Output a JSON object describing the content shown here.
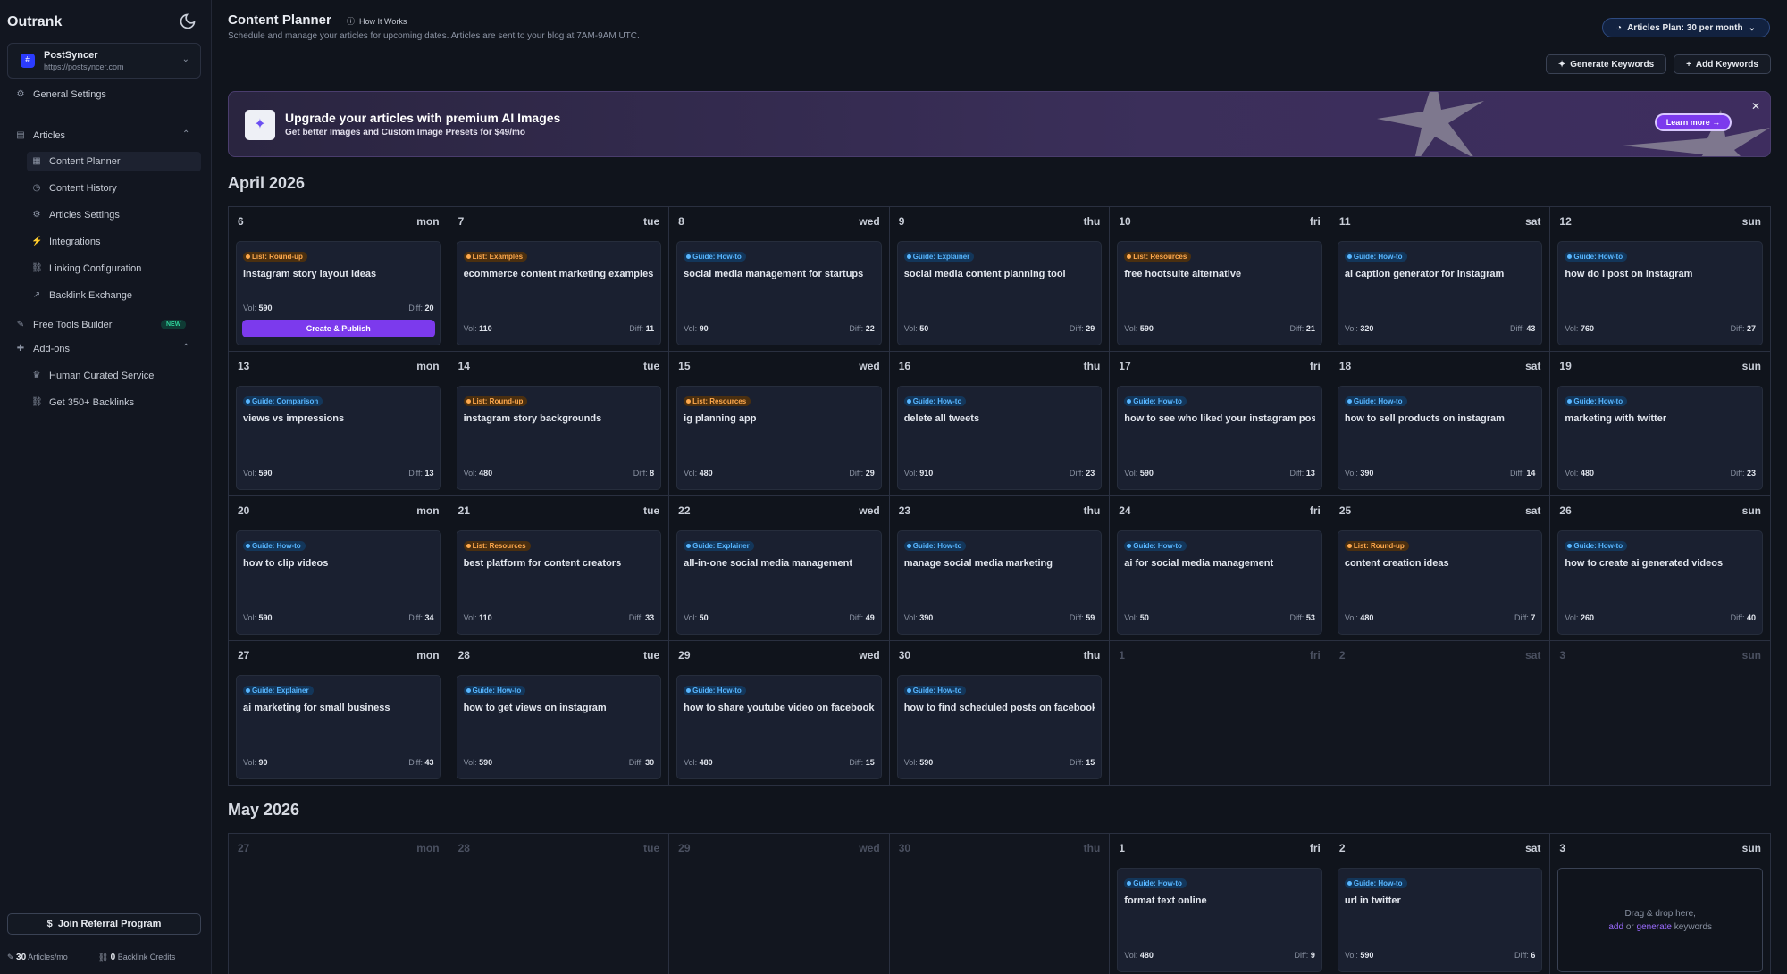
{
  "sidebar": {
    "brand": "Outrank",
    "workspace": {
      "name": "PostSyncer",
      "url": "https://postsyncer.com"
    },
    "general_settings": "General Settings",
    "articles": "Articles",
    "articles_items": [
      "Content Planner",
      "Content History",
      "Articles Settings",
      "Integrations",
      "Linking Configuration",
      "Backlink Exchange"
    ],
    "free_tools": "Free Tools Builder",
    "new_badge": "NEW",
    "addons": "Add-ons",
    "addons_items": [
      "Human Curated Service",
      "Get 350+ Backlinks"
    ],
    "referral": "Join Referral Program",
    "articles_count": "30",
    "articles_unit": "Articles/mo",
    "backlink_count": "0",
    "backlink_unit": "Backlink Credits"
  },
  "header": {
    "title": "Content Planner",
    "how_it_works": "How It Works",
    "subtitle": "Schedule and manage your articles for upcoming dates. Articles are sent to your blog at 7AM-9AM UTC.",
    "plan": "Articles Plan: 30 per month",
    "generate_keywords": "Generate Keywords",
    "add_keywords": "Add Keywords"
  },
  "banner": {
    "title": "Upgrade your articles with premium AI Images",
    "subtitle": "Get better Images and Custom Image Presets for $49/mo",
    "learn_more": "Learn more →"
  },
  "labels": {
    "vol": "Vol:",
    "diff": "Diff:",
    "create_publish": "Create & Publish"
  },
  "april": {
    "title": "April 2026",
    "days": [
      {
        "d": "6",
        "w": "mon",
        "tag": "List: Round-up",
        "t": "list",
        "kw": "instagram story layout ideas",
        "vol": "590",
        "diff": "20",
        "first": true
      },
      {
        "d": "7",
        "w": "tue",
        "tag": "List: Examples",
        "t": "list",
        "kw": "ecommerce content marketing examples",
        "vol": "110",
        "diff": "11"
      },
      {
        "d": "8",
        "w": "wed",
        "tag": "Guide: How-to",
        "t": "guide",
        "kw": "social media management for startups",
        "vol": "90",
        "diff": "22"
      },
      {
        "d": "9",
        "w": "thu",
        "tag": "Guide: Explainer",
        "t": "guide",
        "kw": "social media content planning tool",
        "vol": "50",
        "diff": "29"
      },
      {
        "d": "10",
        "w": "fri",
        "tag": "List: Resources",
        "t": "list",
        "kw": "free hootsuite alternative",
        "vol": "590",
        "diff": "21"
      },
      {
        "d": "11",
        "w": "sat",
        "tag": "Guide: How-to",
        "t": "guide",
        "kw": "ai caption generator for instagram",
        "vol": "320",
        "diff": "43"
      },
      {
        "d": "12",
        "w": "sun",
        "tag": "Guide: How-to",
        "t": "guide",
        "kw": "how do i post on instagram",
        "vol": "760",
        "diff": "27"
      },
      {
        "d": "13",
        "w": "mon",
        "tag": "Guide: Comparison",
        "t": "guide",
        "kw": "views vs impressions",
        "vol": "590",
        "diff": "13"
      },
      {
        "d": "14",
        "w": "tue",
        "tag": "List: Round-up",
        "t": "list",
        "kw": "instagram story backgrounds",
        "vol": "480",
        "diff": "8"
      },
      {
        "d": "15",
        "w": "wed",
        "tag": "List: Resources",
        "t": "list",
        "kw": "ig planning app",
        "vol": "480",
        "diff": "29"
      },
      {
        "d": "16",
        "w": "thu",
        "tag": "Guide: How-to",
        "t": "guide",
        "kw": "delete all tweets",
        "vol": "910",
        "diff": "23"
      },
      {
        "d": "17",
        "w": "fri",
        "tag": "Guide: How-to",
        "t": "guide",
        "kw": "how to see who liked your instagram post",
        "vol": "590",
        "diff": "13"
      },
      {
        "d": "18",
        "w": "sat",
        "tag": "Guide: How-to",
        "t": "guide",
        "kw": "how to sell products on instagram",
        "vol": "390",
        "diff": "14"
      },
      {
        "d": "19",
        "w": "sun",
        "tag": "Guide: How-to",
        "t": "guide",
        "kw": "marketing with twitter",
        "vol": "480",
        "diff": "23"
      },
      {
        "d": "20",
        "w": "mon",
        "tag": "Guide: How-to",
        "t": "guide",
        "kw": "how to clip videos",
        "vol": "590",
        "diff": "34"
      },
      {
        "d": "21",
        "w": "tue",
        "tag": "List: Resources",
        "t": "list",
        "kw": "best platform for content creators",
        "vol": "110",
        "diff": "33"
      },
      {
        "d": "22",
        "w": "wed",
        "tag": "Guide: Explainer",
        "t": "guide",
        "kw": "all-in-one social media management",
        "vol": "50",
        "diff": "49"
      },
      {
        "d": "23",
        "w": "thu",
        "tag": "Guide: How-to",
        "t": "guide",
        "kw": "manage social media marketing",
        "vol": "390",
        "diff": "59"
      },
      {
        "d": "24",
        "w": "fri",
        "tag": "Guide: How-to",
        "t": "guide",
        "kw": "ai for social media management",
        "vol": "50",
        "diff": "53"
      },
      {
        "d": "25",
        "w": "sat",
        "tag": "List: Round-up",
        "t": "list",
        "kw": "content creation ideas",
        "vol": "480",
        "diff": "7"
      },
      {
        "d": "26",
        "w": "sun",
        "tag": "Guide: How-to",
        "t": "guide",
        "kw": "how to create ai generated videos",
        "vol": "260",
        "diff": "40"
      },
      {
        "d": "27",
        "w": "mon",
        "tag": "Guide: Explainer",
        "t": "guide",
        "kw": "ai marketing for small business",
        "vol": "90",
        "diff": "43"
      },
      {
        "d": "28",
        "w": "tue",
        "tag": "Guide: How-to",
        "t": "guide",
        "kw": "how to get views on instagram",
        "vol": "590",
        "diff": "30"
      },
      {
        "d": "29",
        "w": "wed",
        "tag": "Guide: How-to",
        "t": "guide",
        "kw": "how to share youtube video on facebook",
        "vol": "480",
        "diff": "15"
      },
      {
        "d": "30",
        "w": "thu",
        "tag": "Guide: How-to",
        "t": "guide",
        "kw": "how to find scheduled posts on facebook",
        "vol": "590",
        "diff": "15"
      },
      {
        "d": "1",
        "w": "fri",
        "dim": true
      },
      {
        "d": "2",
        "w": "sat",
        "dim": true
      },
      {
        "d": "3",
        "w": "sun",
        "dim": true
      }
    ]
  },
  "may": {
    "title": "May 2026",
    "days": [
      {
        "d": "27",
        "w": "mon",
        "dim": true
      },
      {
        "d": "28",
        "w": "tue",
        "dim": true
      },
      {
        "d": "29",
        "w": "wed",
        "dim": true
      },
      {
        "d": "30",
        "w": "thu",
        "dim": true
      },
      {
        "d": "1",
        "w": "fri",
        "tag": "Guide: How-to",
        "t": "guide",
        "kw": "format text online",
        "vol": "480",
        "diff": "9"
      },
      {
        "d": "2",
        "w": "sat",
        "tag": "Guide: How-to",
        "t": "guide",
        "kw": "url in twitter",
        "vol": "590",
        "diff": "6"
      },
      {
        "d": "3",
        "w": "sun",
        "drop": true
      }
    ]
  },
  "dropzone": {
    "line1": "Drag & drop here,",
    "add": "add",
    "or": " or ",
    "generate": "generate",
    "keywords": " keywords"
  }
}
